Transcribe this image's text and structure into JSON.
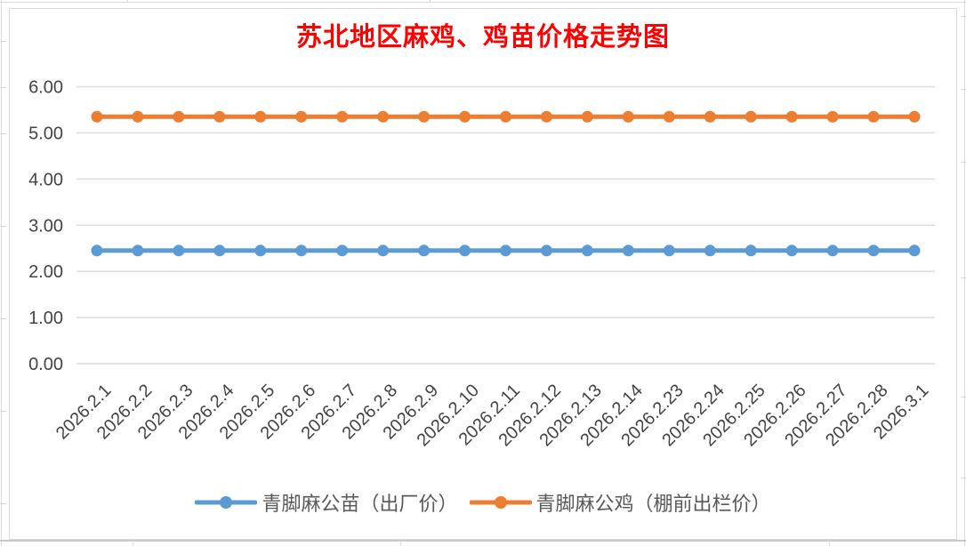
{
  "sheet": {
    "background_color": "#FFFFFF",
    "gridline_color": "#D9D9D9"
  },
  "chart_data": {
    "type": "line",
    "title": "苏北地区麻鸡、鸡苗价格走势图",
    "title_color": "#FF0000",
    "xlabel": "",
    "ylabel": "",
    "categories": [
      "2026.2.1",
      "2026.2.2",
      "2026.2.3",
      "2026.2.4",
      "2026.2.5",
      "2026.2.6",
      "2026.2.7",
      "2026.2.8",
      "2026.2.9",
      "2026.2.10",
      "2026.2.11",
      "2026.2.12",
      "2026.2.13",
      "2026.2.14",
      "2026.2.23",
      "2026.2.24",
      "2026.2.25",
      "2026.2.26",
      "2026.2.27",
      "2026.2.28",
      "2026.3.1"
    ],
    "series": [
      {
        "name": "青脚麻公苗（出厂价）",
        "color": "#5B9BD5",
        "values": [
          2.45,
          2.45,
          2.45,
          2.45,
          2.45,
          2.45,
          2.45,
          2.45,
          2.45,
          2.45,
          2.45,
          2.45,
          2.45,
          2.45,
          2.45,
          2.45,
          2.45,
          2.45,
          2.45,
          2.45,
          2.45
        ]
      },
      {
        "name": "青脚麻公鸡（棚前出栏价）",
        "color": "#ED7D31",
        "values": [
          5.35,
          5.35,
          5.35,
          5.35,
          5.35,
          5.35,
          5.35,
          5.35,
          5.35,
          5.35,
          5.35,
          5.35,
          5.35,
          5.35,
          5.35,
          5.35,
          5.35,
          5.35,
          5.35,
          5.35,
          5.35
        ]
      }
    ],
    "ylim": [
      0,
      6
    ],
    "y_ticks": [
      0,
      1,
      2,
      3,
      4,
      5,
      6
    ],
    "y_tick_labels": [
      "0.00",
      "1.00",
      "2.00",
      "3.00",
      "4.00",
      "5.00",
      "6.00"
    ],
    "grid": true,
    "legend_position": "bottom",
    "axis_label_color": "#444444",
    "legend_text_color": "#595959",
    "gridline_color": "#DCDCDC"
  }
}
